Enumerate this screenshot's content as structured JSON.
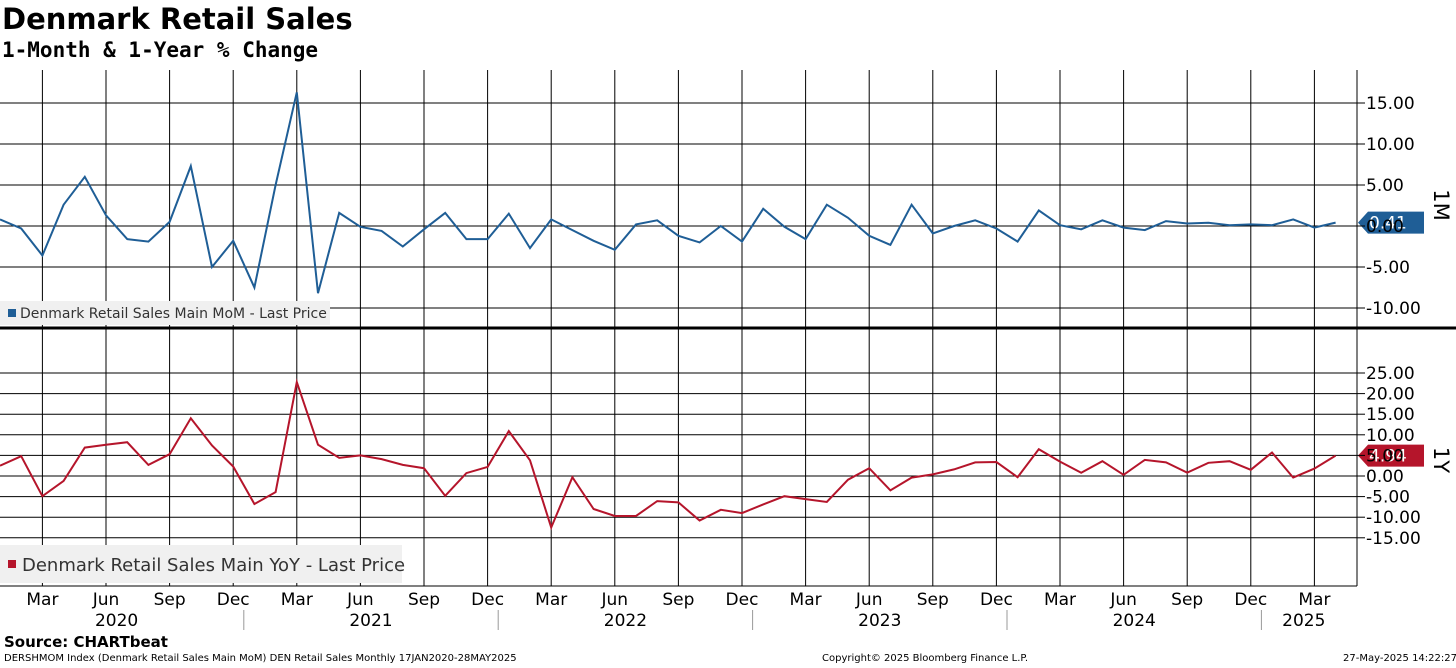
{
  "title": "Denmark Retail Sales",
  "subtitle": "1-Month & 1-Year % Change",
  "source": "Source: CHARTbeat",
  "footer": {
    "left": "DERSHMOM Index (Denmark Retail Sales Main MoM) DEN Retail Sales  Monthly 17JAN2020-28MAY2025",
    "center": "Copyright© 2025 Bloomberg Finance L.P.",
    "right": "27-May-2025 14:22:27"
  },
  "colors": {
    "mom": "#1f5e96",
    "yoy": "#b5152b",
    "grid": "#000000"
  },
  "x_axis": {
    "month_labels": [
      "Mar",
      "Jun",
      "Sep",
      "Dec",
      "Mar",
      "Jun",
      "Sep",
      "Dec",
      "Mar",
      "Jun",
      "Sep",
      "Dec",
      "Mar",
      "Jun",
      "Sep",
      "Dec",
      "Mar",
      "Jun",
      "Sep",
      "Dec",
      "Mar"
    ],
    "year_labels": [
      "2020",
      "2021",
      "2022",
      "2023",
      "2024",
      "2025"
    ]
  },
  "chart_data": [
    {
      "type": "line",
      "panel": "top",
      "axis_label": "1M",
      "ylim": [
        -12,
        19
      ],
      "yticks": [
        "15.00",
        "10.00",
        "5.00",
        "0.00",
        "-5.00",
        "-10.00"
      ],
      "tick_values": [
        15,
        10,
        5,
        0,
        -5,
        -10
      ],
      "legend_position": "bottom-left",
      "grid": true,
      "series": [
        {
          "name": "Denmark Retail Sales Main MoM - Last Price",
          "last_value_label": "0.41",
          "x": [
            "2020-01",
            "2020-02",
            "2020-03",
            "2020-04",
            "2020-05",
            "2020-06",
            "2020-07",
            "2020-08",
            "2020-09",
            "2020-10",
            "2020-11",
            "2020-12",
            "2021-01",
            "2021-02",
            "2021-03",
            "2021-04",
            "2021-05",
            "2021-06",
            "2021-07",
            "2021-08",
            "2021-09",
            "2021-10",
            "2021-11",
            "2021-12",
            "2022-01",
            "2022-02",
            "2022-03",
            "2022-04",
            "2022-05",
            "2022-06",
            "2022-07",
            "2022-08",
            "2022-09",
            "2022-10",
            "2022-11",
            "2022-12",
            "2023-01",
            "2023-02",
            "2023-03",
            "2023-04",
            "2023-05",
            "2023-06",
            "2023-07",
            "2023-08",
            "2023-09",
            "2023-10",
            "2023-11",
            "2023-12",
            "2024-01",
            "2024-02",
            "2024-03",
            "2024-04",
            "2024-05",
            "2024-06",
            "2024-07",
            "2024-08",
            "2024-09",
            "2024-10",
            "2024-11",
            "2024-12",
            "2025-01",
            "2025-02",
            "2025-03",
            "2025-04"
          ],
          "values": [
            0.8,
            -0.3,
            -3.6,
            2.6,
            6.0,
            1.3,
            -1.6,
            -1.9,
            0.5,
            7.3,
            -5.0,
            -1.8,
            -7.5,
            5.0,
            16.3,
            -8.2,
            1.6,
            -0.1,
            -0.6,
            -2.5,
            -0.4,
            1.6,
            -1.6,
            -1.6,
            1.5,
            -2.7,
            0.8,
            -0.5,
            -1.8,
            -2.9,
            0.2,
            0.7,
            -1.2,
            -2.0,
            0.0,
            -1.9,
            2.1,
            -0.1,
            -1.6,
            2.6,
            1.0,
            -1.2,
            -2.3,
            2.6,
            -0.9,
            0.0,
            0.7,
            -0.3,
            -1.9,
            1.9,
            0.1,
            -0.4,
            0.7,
            -0.2,
            -0.5,
            0.6,
            0.3,
            0.4,
            0.1,
            0.2,
            0.1,
            0.8,
            -0.2,
            0.41
          ]
        }
      ]
    },
    {
      "type": "line",
      "panel": "bottom",
      "axis_label": "1Y",
      "ylim": [
        -20,
        27
      ],
      "yticks": [
        "25.00",
        "20.00",
        "15.00",
        "10.00",
        "5.00",
        "0.00",
        "-5.00",
        "-10.00",
        "-15.00"
      ],
      "tick_values": [
        25,
        20,
        15,
        10,
        5,
        0,
        -5,
        -10,
        -15
      ],
      "legend_position": "bottom-left",
      "grid": true,
      "series": [
        {
          "name": "Denmark Retail Sales Main YoY - Last Price",
          "last_value_label": "4.94",
          "x": [
            "2020-01",
            "2020-02",
            "2020-03",
            "2020-04",
            "2020-05",
            "2020-06",
            "2020-07",
            "2020-08",
            "2020-09",
            "2020-10",
            "2020-11",
            "2020-12",
            "2021-01",
            "2021-02",
            "2021-03",
            "2021-04",
            "2021-05",
            "2021-06",
            "2021-07",
            "2021-08",
            "2021-09",
            "2021-10",
            "2021-11",
            "2021-12",
            "2022-01",
            "2022-02",
            "2022-03",
            "2022-04",
            "2022-05",
            "2022-06",
            "2022-07",
            "2022-08",
            "2022-09",
            "2022-10",
            "2022-11",
            "2022-12",
            "2023-01",
            "2023-02",
            "2023-03",
            "2023-04",
            "2023-05",
            "2023-06",
            "2023-07",
            "2023-08",
            "2023-09",
            "2023-10",
            "2023-11",
            "2023-12",
            "2024-01",
            "2024-02",
            "2024-03",
            "2024-04",
            "2024-05",
            "2024-06",
            "2024-07",
            "2024-08",
            "2024-09",
            "2024-10",
            "2024-11",
            "2024-12",
            "2025-01",
            "2025-02",
            "2025-03",
            "2025-04"
          ],
          "values": [
            2.5,
            4.8,
            -4.9,
            -1.2,
            6.9,
            7.6,
            8.2,
            2.7,
            5.3,
            14.0,
            7.4,
            2.3,
            -6.8,
            -3.9,
            22.8,
            7.6,
            4.4,
            5.0,
            4.1,
            2.7,
            1.9,
            -4.8,
            0.7,
            2.2,
            10.9,
            3.8,
            -12.5,
            -0.3,
            -8.0,
            -9.7,
            -9.7,
            -6.1,
            -6.4,
            -10.8,
            -8.2,
            -9.0,
            -6.9,
            -4.9,
            -5.6,
            -6.3,
            -0.9,
            1.9,
            -3.5,
            -0.4,
            0.4,
            1.6,
            3.3,
            3.4,
            -0.3,
            6.5,
            3.5,
            0.8,
            3.6,
            0.3,
            3.9,
            3.3,
            0.8,
            3.2,
            3.6,
            1.5,
            5.7,
            -0.4,
            1.8,
            4.94
          ]
        }
      ]
    }
  ]
}
